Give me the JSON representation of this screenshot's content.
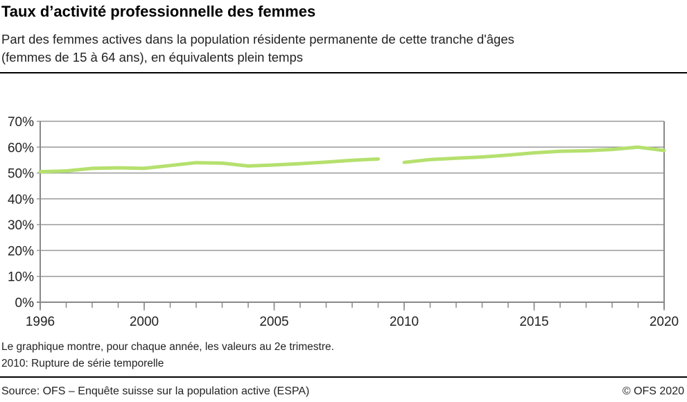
{
  "title": "Taux d’activité professionnelle des femmes",
  "subtitle_line1": "Part des femmes actives dans la population résidente permanente de cette tranche d'âges",
  "subtitle_line2": "(femmes  de 15 à 64 ans), en équivalents plein temps",
  "notes": [
    "Le graphique montre, pour chaque année, les valeurs au 2e trimestre.",
    "2010: Rupture de série temporelle"
  ],
  "source": "Source: OFS – Enquête suisse sur la population active (ESPA)",
  "copyright": "© OFS 2020",
  "chart_data": {
    "type": "line",
    "title": "",
    "xlabel": "",
    "ylabel": "",
    "xlim": [
      1996,
      2020
    ],
    "ylim": [
      0,
      70
    ],
    "y_ticks": [
      "0%",
      "10%",
      "20%",
      "30%",
      "40%",
      "50%",
      "60%",
      "70%"
    ],
    "x_ticks": [
      "1996",
      "2000",
      "2005",
      "2010",
      "2015",
      "2020"
    ],
    "grid": true,
    "color": "#b5e06e",
    "series": [
      {
        "segment": "1996-2009",
        "x": [
          1996,
          1997,
          1998,
          1999,
          2000,
          2001,
          2002,
          2003,
          2004,
          2005,
          2006,
          2007,
          2008,
          2009
        ],
        "values": [
          50.5,
          50.8,
          51.8,
          52.0,
          51.8,
          52.9,
          54.0,
          53.8,
          52.7,
          53.1,
          53.6,
          54.2,
          54.9,
          55.4
        ]
      },
      {
        "segment": "2010-2020",
        "x": [
          2010,
          2011,
          2012,
          2013,
          2014,
          2015,
          2016,
          2017,
          2018,
          2019,
          2020
        ],
        "values": [
          54.1,
          55.2,
          55.7,
          56.2,
          56.9,
          57.8,
          58.4,
          58.6,
          59.1,
          60.0,
          58.7
        ]
      }
    ]
  }
}
